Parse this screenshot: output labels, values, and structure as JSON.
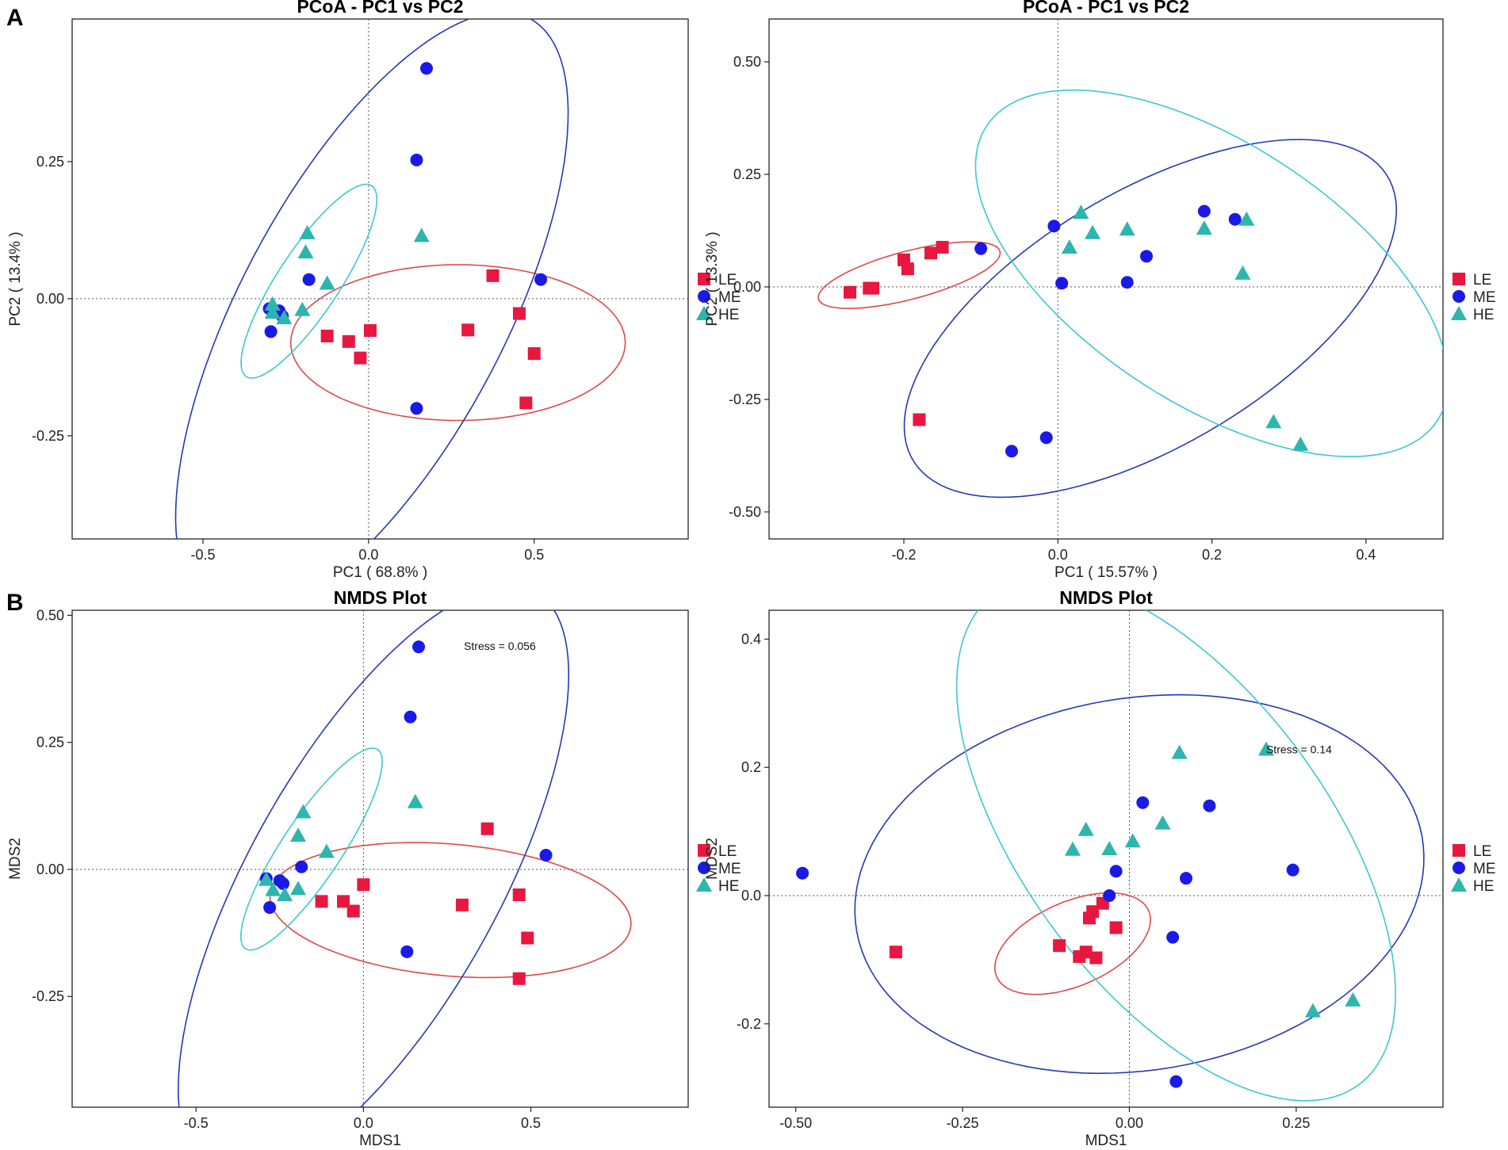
{
  "panel_letters": {
    "a": "A",
    "b": "B"
  },
  "colors": {
    "LE": "#e8173f",
    "ME": "#1a1ae6",
    "HE": "#2db6ad",
    "ellipse_LE": "#e04848",
    "ellipse_ME": "#2638b8",
    "ellipse_HE": "#3cc8d2"
  },
  "legend": [
    {
      "group": "LE",
      "label": "LE",
      "shape": "square-icon"
    },
    {
      "group": "ME",
      "label": "ME",
      "shape": "circle-icon"
    },
    {
      "group": "HE",
      "label": "HE",
      "shape": "triangle-icon"
    }
  ],
  "chart_data": [
    {
      "id": "pcoa-left",
      "type": "scatter",
      "title": "PCoA - PC1 vs PC2",
      "xlabel": "PC1 ( 68.8% )",
      "ylabel": "PC2 ( 13.4% )",
      "xlim": [
        -0.895,
        0.965
      ],
      "ylim": [
        -0.438,
        0.51
      ],
      "xticks": [
        -0.5,
        0.0,
        0.5
      ],
      "xtick_labels": [
        "-0.5",
        "0.0",
        "0.5"
      ],
      "yticks": [
        -0.25,
        0.0,
        0.25
      ],
      "ytick_labels": [
        "-0.25",
        "0.00",
        "0.25"
      ],
      "grid": false,
      "reference_lines": {
        "x": 0,
        "y": 0
      },
      "legend_position": "right",
      "series": [
        {
          "name": "LE",
          "points": [
            [
              -0.125,
              -0.068
            ],
            [
              -0.06,
              -0.078
            ],
            [
              -0.025,
              -0.108
            ],
            [
              0.005,
              -0.058
            ],
            [
              0.3,
              -0.057
            ],
            [
              0.375,
              0.042
            ],
            [
              0.455,
              -0.027
            ],
            [
              0.5,
              -0.1
            ],
            [
              0.475,
              -0.19
            ]
          ]
        },
        {
          "name": "ME",
          "points": [
            [
              -0.3,
              -0.018
            ],
            [
              -0.28,
              -0.025
            ],
            [
              -0.27,
              -0.022
            ],
            [
              -0.26,
              -0.032
            ],
            [
              -0.295,
              -0.06
            ],
            [
              -0.18,
              0.035
            ],
            [
              0.145,
              0.253
            ],
            [
              0.175,
              0.42
            ],
            [
              0.145,
              -0.2
            ],
            [
              0.52,
              0.035
            ]
          ]
        },
        {
          "name": "HE",
          "points": [
            [
              -0.185,
              0.12
            ],
            [
              -0.19,
              0.085
            ],
            [
              -0.125,
              0.028
            ],
            [
              -0.29,
              -0.01
            ],
            [
              -0.29,
              -0.025
            ],
            [
              -0.255,
              -0.035
            ],
            [
              -0.2,
              -0.02
            ],
            [
              0.16,
              0.115
            ]
          ]
        }
      ],
      "ellipses": [
        {
          "group": "LE",
          "center": [
            0.27,
            -0.08
          ],
          "semi_axes": [
            0.505,
            0.142
          ],
          "angle_deg": 0
        },
        {
          "group": "ME",
          "center": [
            0.01,
            -0.03
          ],
          "semi_axes": [
            0.74,
            0.33
          ],
          "angle_deg": 42
        },
        {
          "group": "HE",
          "center": [
            -0.18,
            0.032
          ],
          "semi_axes": [
            0.26,
            0.075
          ],
          "angle_deg": 40
        }
      ]
    },
    {
      "id": "pcoa-right",
      "type": "scatter",
      "title": "PCoA - PC1 vs PC2",
      "xlabel": "PC1 ( 15.57% )",
      "ylabel": "PC2 ( 13.3% )",
      "xlim": [
        -0.375,
        0.5
      ],
      "ylim": [
        -0.56,
        0.595
      ],
      "xticks": [
        -0.2,
        0.0,
        0.2,
        0.4
      ],
      "xtick_labels": [
        "-0.2",
        "0.0",
        "0.2",
        "0.4"
      ],
      "yticks": [
        -0.5,
        -0.25,
        0.0,
        0.25,
        0.5
      ],
      "ytick_labels": [
        "-0.50",
        "-0.25",
        "0.00",
        "0.25",
        "0.50"
      ],
      "grid": false,
      "reference_lines": {
        "x": 0,
        "y": 0
      },
      "legend_position": "right",
      "series": [
        {
          "name": "LE",
          "points": [
            [
              -0.27,
              -0.012
            ],
            [
              -0.245,
              -0.003
            ],
            [
              -0.24,
              -0.003
            ],
            [
              -0.2,
              0.06
            ],
            [
              -0.195,
              0.04
            ],
            [
              -0.165,
              0.075
            ],
            [
              -0.15,
              0.088
            ],
            [
              -0.18,
              -0.295
            ]
          ]
        },
        {
          "name": "ME",
          "points": [
            [
              -0.1,
              0.085
            ],
            [
              -0.005,
              0.135
            ],
            [
              0.005,
              0.008
            ],
            [
              0.09,
              0.01
            ],
            [
              0.115,
              0.068
            ],
            [
              0.19,
              0.168
            ],
            [
              0.23,
              0.15
            ],
            [
              -0.06,
              -0.365
            ],
            [
              -0.015,
              -0.335
            ]
          ]
        },
        {
          "name": "HE",
          "points": [
            [
              0.015,
              0.088
            ],
            [
              0.03,
              0.165
            ],
            [
              0.045,
              0.12
            ],
            [
              0.09,
              0.128
            ],
            [
              0.19,
              0.13
            ],
            [
              0.245,
              0.15
            ],
            [
              0.24,
              0.03
            ],
            [
              0.28,
              -0.3
            ],
            [
              0.315,
              -0.35
            ]
          ]
        }
      ],
      "ellipses": [
        {
          "group": "LE",
          "center": [
            -0.193,
            0.026
          ],
          "semi_axes": [
            0.13,
            0.05
          ],
          "angle_deg": 27
        },
        {
          "group": "ME",
          "center": [
            0.12,
            -0.07
          ],
          "semi_axes": [
            0.46,
            0.22
          ],
          "angle_deg": 55
        },
        {
          "group": "HE",
          "center": [
            0.2,
            0.03
          ],
          "semi_axes": [
            0.46,
            0.22
          ],
          "angle_deg": -58
        }
      ]
    },
    {
      "id": "nmds-left",
      "type": "scatter",
      "title": "NMDS Plot",
      "xlabel": "MDS1",
      "ylabel": "MDS2",
      "xlim": [
        -0.87,
        0.97
      ],
      "ylim": [
        -0.468,
        0.51
      ],
      "xticks": [
        -0.5,
        0.0,
        0.5
      ],
      "xtick_labels": [
        "-0.5",
        "0.0",
        "0.5"
      ],
      "yticks": [
        -0.25,
        0.0,
        0.25,
        0.5
      ],
      "ytick_labels": [
        "-0.25",
        "0.00",
        "0.25",
        "0.50"
      ],
      "grid": false,
      "reference_lines": {
        "x": 0,
        "y": 0
      },
      "legend_position": "right",
      "annotation": {
        "text": "Stress = 0.056",
        "at": [
          0.3,
          0.44
        ]
      },
      "series": [
        {
          "name": "LE",
          "points": [
            [
              -0.125,
              -0.063
            ],
            [
              -0.06,
              -0.063
            ],
            [
              -0.03,
              -0.082
            ],
            [
              0.0,
              -0.03
            ],
            [
              0.295,
              -0.07
            ],
            [
              0.37,
              0.08
            ],
            [
              0.465,
              -0.05
            ],
            [
              0.49,
              -0.135
            ],
            [
              0.465,
              -0.215
            ]
          ]
        },
        {
          "name": "ME",
          "points": [
            [
              -0.29,
              -0.018
            ],
            [
              -0.25,
              -0.022
            ],
            [
              -0.24,
              -0.028
            ],
            [
              -0.28,
              -0.075
            ],
            [
              -0.185,
              0.005
            ],
            [
              0.14,
              0.3
            ],
            [
              0.165,
              0.438
            ],
            [
              0.13,
              -0.162
            ],
            [
              0.545,
              0.028
            ]
          ]
        },
        {
          "name": "HE",
          "points": [
            [
              -0.18,
              0.113
            ],
            [
              -0.195,
              0.067
            ],
            [
              -0.11,
              0.035
            ],
            [
              -0.29,
              -0.02
            ],
            [
              -0.27,
              -0.04
            ],
            [
              -0.235,
              -0.05
            ],
            [
              -0.195,
              -0.038
            ],
            [
              0.155,
              0.133
            ]
          ]
        }
      ],
      "ellipses": [
        {
          "group": "LE",
          "center": [
            0.26,
            -0.08
          ],
          "semi_axes": [
            0.54,
            0.13
          ],
          "angle_deg": -3
        },
        {
          "group": "ME",
          "center": [
            0.03,
            -0.025
          ],
          "semi_axes": [
            0.76,
            0.32
          ],
          "angle_deg": 45
        },
        {
          "group": "HE",
          "center": [
            -0.155,
            0.04
          ],
          "semi_axes": [
            0.28,
            0.075
          ],
          "angle_deg": 43
        }
      ]
    },
    {
      "id": "nmds-right",
      "type": "scatter",
      "title": "NMDS Plot",
      "xlabel": "MDS1",
      "ylabel": "MDS2",
      "xlim": [
        -0.54,
        0.47
      ],
      "ylim": [
        -0.33,
        0.445
      ],
      "xticks": [
        -0.5,
        -0.25,
        0.0,
        0.25
      ],
      "xtick_labels": [
        "-0.50",
        "-0.25",
        "0.00",
        "0.25"
      ],
      "yticks": [
        -0.2,
        0.0,
        0.2,
        0.4
      ],
      "ytick_labels": [
        "-0.2",
        "0.0",
        "0.2",
        "0.4"
      ],
      "grid": false,
      "reference_lines": {
        "x": 0,
        "y": 0
      },
      "legend_position": "right",
      "annotation": {
        "text": "Stress = 0.14",
        "at": [
          0.205,
          0.228
        ]
      },
      "series": [
        {
          "name": "LE",
          "points": [
            [
              -0.35,
              -0.088
            ],
            [
              -0.105,
              -0.078
            ],
            [
              -0.075,
              -0.095
            ],
            [
              -0.065,
              -0.088
            ],
            [
              -0.06,
              -0.035
            ],
            [
              -0.055,
              -0.025
            ],
            [
              -0.05,
              -0.097
            ],
            [
              -0.04,
              -0.012
            ],
            [
              -0.02,
              -0.05
            ]
          ]
        },
        {
          "name": "ME",
          "points": [
            [
              -0.49,
              0.035
            ],
            [
              -0.03,
              0.0
            ],
            [
              -0.02,
              0.038
            ],
            [
              0.02,
              0.145
            ],
            [
              0.065,
              -0.065
            ],
            [
              0.085,
              0.027
            ],
            [
              0.12,
              0.14
            ],
            [
              0.245,
              0.04
            ],
            [
              0.07,
              -0.29
            ]
          ]
        },
        {
          "name": "HE",
          "points": [
            [
              -0.085,
              0.072
            ],
            [
              -0.065,
              0.103
            ],
            [
              -0.03,
              0.073
            ],
            [
              0.005,
              0.085
            ],
            [
              0.05,
              0.113
            ],
            [
              0.075,
              0.223
            ],
            [
              0.205,
              0.228
            ],
            [
              0.275,
              -0.18
            ],
            [
              0.335,
              -0.163
            ]
          ]
        }
      ],
      "ellipses": [
        {
          "group": "LE",
          "center": [
            -0.085,
            -0.075
          ],
          "semi_axes": [
            0.125,
            0.065
          ],
          "angle_deg": 25
        },
        {
          "group": "ME",
          "center": [
            0.015,
            0.018
          ],
          "semi_axes": [
            0.43,
            0.29
          ],
          "angle_deg": 10
        },
        {
          "group": "HE",
          "center": [
            0.07,
            0.087
          ],
          "semi_axes": [
            0.47,
            0.23
          ],
          "angle_deg": -55
        }
      ]
    }
  ]
}
